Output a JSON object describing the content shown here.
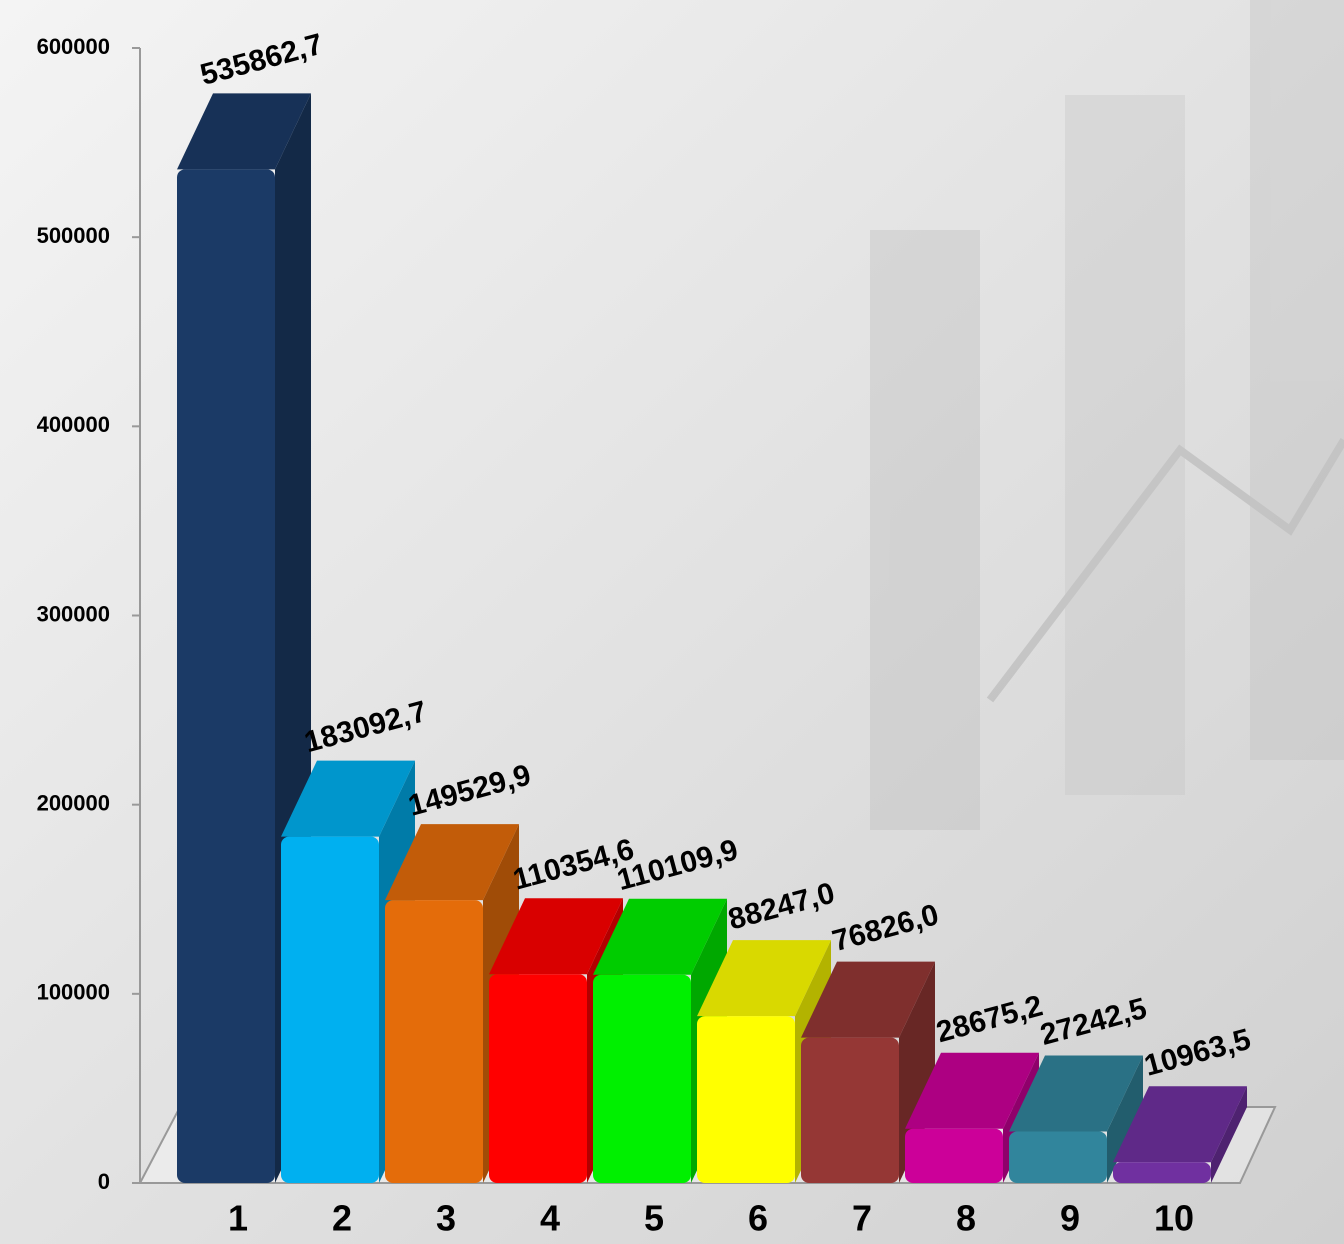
{
  "chart_data": {
    "type": "bar3d",
    "categories": [
      "1",
      "2",
      "3",
      "4",
      "5",
      "6",
      "7",
      "8",
      "9",
      "10"
    ],
    "values": [
      535862.7,
      183092.7,
      149529.9,
      110354.6,
      110109.9,
      88247.0,
      76826.0,
      28675.2,
      27242.5,
      10963.5
    ],
    "value_labels": [
      "535862,7",
      "183092,7",
      "149529,9",
      "110354,6",
      "110109,9",
      "88247,0",
      "76826,0",
      "28675,2",
      "27242,5",
      "10963,5"
    ],
    "colors": [
      "#1b3a66",
      "#00b0f0",
      "#e46c0a",
      "#ff0000",
      "#00f000",
      "#ffff00",
      "#953735",
      "#cc0099",
      "#31859c",
      "#7030a0"
    ],
    "ylim": [
      0,
      600000
    ],
    "yticks": [
      0,
      100000,
      200000,
      300000,
      400000,
      500000,
      600000
    ]
  }
}
